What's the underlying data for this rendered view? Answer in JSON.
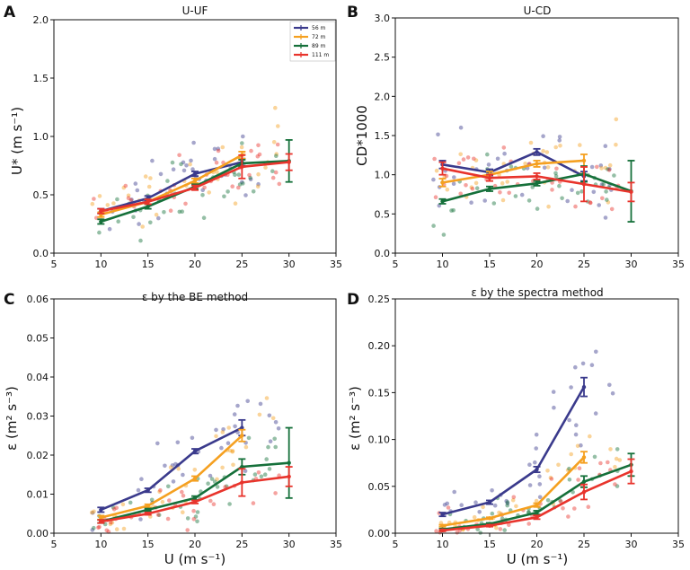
{
  "chart_data": [
    {
      "panel_label": "A",
      "type": "line",
      "title": "U-UF",
      "ylabel": "U* (m s⁻¹)",
      "xlabel": "",
      "xlim": [
        5,
        35
      ],
      "ylim": [
        0,
        2.0
      ],
      "xticks": [
        5,
        10,
        15,
        20,
        25,
        30,
        35
      ],
      "yticks": [
        0.0,
        0.5,
        1.0,
        1.5,
        2.0
      ],
      "ytick_labels": [
        "0.0",
        "0.5",
        "1.0",
        "1.5",
        "2.0"
      ],
      "legend_position": "top-center",
      "x": [
        10,
        15,
        20,
        25,
        30
      ],
      "series": [
        {
          "name": "56 m",
          "color": "#3a3a8c",
          "values": [
            0.36,
            0.47,
            0.68,
            0.78,
            null
          ],
          "err": [
            0.02,
            0.02,
            0.02,
            0.03,
            0
          ]
        },
        {
          "name": "72 m",
          "color": "#f5a020",
          "values": [
            0.33,
            0.44,
            0.62,
            0.84,
            null
          ],
          "err": [
            0.02,
            0.02,
            0.02,
            0.03,
            0
          ]
        },
        {
          "name": "89 m",
          "color": "#15703a",
          "values": [
            0.27,
            0.4,
            0.57,
            0.77,
            0.79
          ],
          "err": [
            0.02,
            0.02,
            0.02,
            0.03,
            0.18
          ]
        },
        {
          "name": "111 m",
          "color": "#e8342c",
          "values": [
            0.36,
            0.44,
            0.56,
            0.74,
            0.78
          ],
          "err": [
            0.02,
            0.02,
            0.02,
            0.1,
            0.07
          ]
        }
      ]
    },
    {
      "panel_label": "B",
      "type": "line",
      "title": "U-CD",
      "ylabel": "CD*1000",
      "xlabel": "",
      "xlim": [
        5,
        35
      ],
      "ylim": [
        0,
        3.0
      ],
      "xticks": [
        5,
        10,
        15,
        20,
        25,
        30,
        35
      ],
      "yticks": [
        0.0,
        0.5,
        1.0,
        1.5,
        2.0,
        2.5,
        3.0
      ],
      "ytick_labels": [
        "0.0",
        "0.5",
        "1.0",
        "1.5",
        "2.0",
        "2.5",
        "3.0"
      ],
      "x": [
        10,
        15,
        20,
        25,
        30
      ],
      "series": [
        {
          "name": "56 m",
          "color": "#3a3a8c",
          "values": [
            1.13,
            1.03,
            1.29,
            0.98,
            null
          ],
          "err": [
            0.05,
            0.04,
            0.04,
            0.06,
            0
          ]
        },
        {
          "name": "72 m",
          "color": "#f5a020",
          "values": [
            0.9,
            1.0,
            1.14,
            1.18,
            null
          ],
          "err": [
            0.05,
            0.04,
            0.04,
            0.08,
            0
          ]
        },
        {
          "name": "89 m",
          "color": "#15703a",
          "values": [
            0.66,
            0.82,
            0.89,
            1.01,
            0.79
          ],
          "err": [
            0.03,
            0.03,
            0.03,
            0.1,
            0.39
          ]
        },
        {
          "name": "111 m",
          "color": "#e8342c",
          "values": [
            1.08,
            0.96,
            0.98,
            0.88,
            0.78
          ],
          "err": [
            0.08,
            0.04,
            0.04,
            0.22,
            0.12
          ]
        }
      ]
    },
    {
      "panel_label": "C",
      "type": "line",
      "title": "ε by the BE method",
      "ylabel": "ε (m² s⁻³)",
      "xlabel": "U (m s⁻¹)",
      "xlim": [
        5,
        35
      ],
      "ylim": [
        0,
        0.06
      ],
      "xticks": [
        5,
        10,
        15,
        20,
        25,
        30,
        35
      ],
      "yticks": [
        0.0,
        0.01,
        0.02,
        0.03,
        0.04,
        0.05,
        0.06
      ],
      "ytick_labels": [
        "0.00",
        "0.01",
        "0.02",
        "0.03",
        "0.04",
        "0.05",
        "0.06"
      ],
      "x": [
        10,
        15,
        20,
        25,
        30
      ],
      "series": [
        {
          "name": "56 m",
          "color": "#3a3a8c",
          "values": [
            0.006,
            0.011,
            0.021,
            0.027,
            null
          ],
          "err": [
            0.0006,
            0.0005,
            0.0006,
            0.002,
            0
          ]
        },
        {
          "name": "72 m",
          "color": "#f5a020",
          "values": [
            0.004,
            0.007,
            0.014,
            0.025,
            null
          ],
          "err": [
            0.0005,
            0.0004,
            0.0006,
            0.0015,
            0
          ]
        },
        {
          "name": "89 m",
          "color": "#15703a",
          "values": [
            0.003,
            0.006,
            0.009,
            0.017,
            0.018
          ],
          "err": [
            0.0004,
            0.0003,
            0.0005,
            0.002,
            0.009
          ]
        },
        {
          "name": "111 m",
          "color": "#e8342c",
          "values": [
            0.003,
            0.005,
            0.008,
            0.013,
            0.0145
          ],
          "err": [
            0.0004,
            0.0003,
            0.0004,
            0.0035,
            0.0025
          ]
        }
      ]
    },
    {
      "panel_label": "D",
      "type": "line",
      "title": "ε by the spectra method",
      "ylabel": "ε (m² s⁻³)",
      "xlabel": "U (m s⁻¹)",
      "xlim": [
        5,
        35
      ],
      "ylim": [
        0,
        0.25
      ],
      "xticks": [
        5,
        10,
        15,
        20,
        25,
        30,
        35
      ],
      "yticks": [
        0.0,
        0.05,
        0.1,
        0.15,
        0.2,
        0.25
      ],
      "ytick_labels": [
        "0.00",
        "0.05",
        "0.10",
        "0.15",
        "0.20",
        "0.25"
      ],
      "x": [
        10,
        15,
        20,
        25,
        30
      ],
      "series": [
        {
          "name": "56 m",
          "color": "#3a3a8c",
          "values": [
            0.02,
            0.033,
            0.068,
            0.156,
            null
          ],
          "err": [
            0.002,
            0.002,
            0.003,
            0.01,
            0
          ]
        },
        {
          "name": "72 m",
          "color": "#f5a020",
          "values": [
            0.008,
            0.016,
            0.03,
            0.081,
            null
          ],
          "err": [
            0.001,
            0.001,
            0.002,
            0.006,
            0
          ]
        },
        {
          "name": "89 m",
          "color": "#15703a",
          "values": [
            0.004,
            0.01,
            0.022,
            0.055,
            0.073
          ],
          "err": [
            0.001,
            0.001,
            0.002,
            0.006,
            0.012
          ]
        },
        {
          "name": "111 m",
          "color": "#e8342c",
          "values": [
            0.003,
            0.008,
            0.017,
            0.044,
            0.066
          ],
          "err": [
            0.001,
            0.001,
            0.002,
            0.008,
            0.013
          ]
        }
      ]
    }
  ]
}
